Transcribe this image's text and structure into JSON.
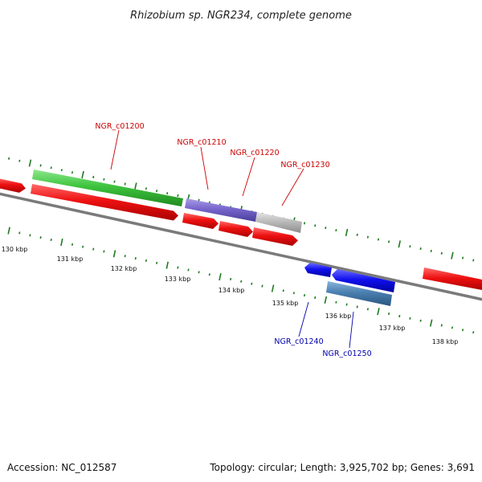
{
  "title": "Rhizobium sp. NGR234, complete genome",
  "accession": "Accession: NC_012587",
  "topology": "Topology: circular; Length: 3,925,702 bp; Genes: 3,691",
  "colors": {
    "backbone": "#7a7a7a",
    "ticks": "#1f7a1f",
    "cds_red": "#ee1111",
    "gene_green": "#3ec43e",
    "gene_purple": "#7766cc",
    "gene_grey": "#bbbbbb",
    "cds_blue": "#1111ee",
    "gene_steelblue": "#4a7fb0",
    "label_red": "#cc0000",
    "label_blue": "#0000aa"
  },
  "kbp_labels": [
    "130 kbp",
    "131 kbp",
    "132 kbp",
    "133 kbp",
    "134 kbp",
    "135 kbp",
    "136 kbp",
    "137 kbp",
    "138 kbp"
  ],
  "gene_labels": {
    "g1200": "NGR_c01200",
    "g1210": "NGR_c01210",
    "g1220": "NGR_c01220",
    "g1230": "NGR_c01230",
    "g1240": "NGR_c01240",
    "g1250": "NGR_c01250"
  }
}
